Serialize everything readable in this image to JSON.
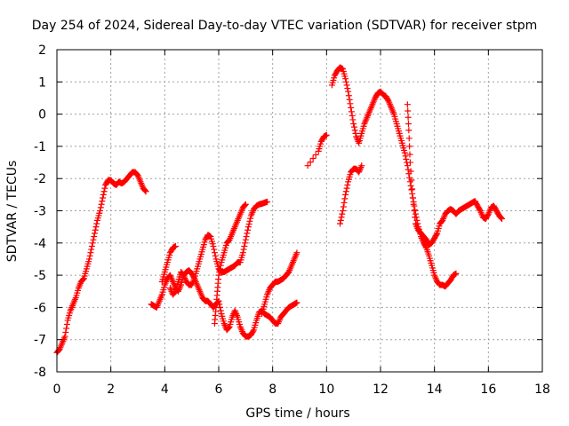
{
  "chart_data": {
    "type": "scatter",
    "title": "Day 254 of 2024, Sidereal Day-to-day VTEC variation (SDTVAR) for receiver stpm",
    "xlabel": "GPS time / hours",
    "ylabel": "SDTVAR / TECUs",
    "xlim": [
      0,
      18
    ],
    "ylim": [
      -8,
      2
    ],
    "xticks": [
      "0",
      "2",
      "4",
      "6",
      "8",
      "10",
      "12",
      "14",
      "16",
      "18"
    ],
    "yticks": [
      "2",
      "1",
      "0",
      "-1",
      "-2",
      "-3",
      "-4",
      "-5",
      "-6",
      "-7",
      "-8"
    ],
    "grid": true,
    "marker": "plus",
    "color": "#ff0000",
    "series": [
      {
        "name": "seg1",
        "x": [
          0.0,
          0.1,
          0.2,
          0.3,
          0.4,
          0.5,
          0.6,
          0.7,
          0.8,
          0.9,
          1.0,
          1.1,
          1.2,
          1.3,
          1.4,
          1.5,
          1.6,
          1.7,
          1.8,
          1.9,
          2.0,
          2.1,
          2.2,
          2.3,
          2.4,
          2.5,
          2.6,
          2.7,
          2.8,
          2.9,
          3.0,
          3.1,
          3.2,
          3.3
        ],
        "y": [
          -7.4,
          -7.3,
          -7.1,
          -6.9,
          -6.4,
          -6.1,
          -5.9,
          -5.7,
          -5.4,
          -5.2,
          -5.1,
          -4.8,
          -4.5,
          -4.1,
          -3.7,
          -3.3,
          -3.0,
          -2.6,
          -2.2,
          -2.05,
          -2.05,
          -2.15,
          -2.2,
          -2.1,
          -2.15,
          -2.1,
          -2.0,
          -1.9,
          -1.8,
          -1.8,
          -1.9,
          -2.1,
          -2.3,
          -2.4
        ]
      },
      {
        "name": "seg2",
        "x": [
          3.5,
          3.6,
          3.7,
          3.8,
          3.9,
          4.0,
          4.1,
          4.2,
          4.3,
          4.4,
          4.5,
          4.6,
          4.7,
          4.8,
          4.9,
          5.0,
          5.1,
          5.2,
          5.3,
          5.4,
          5.5,
          5.6,
          5.7,
          5.8,
          5.9,
          6.0,
          6.1,
          6.2,
          6.3,
          6.4,
          6.5,
          6.6,
          6.7,
          6.8,
          6.9,
          7.0,
          7.1,
          7.2,
          7.3,
          7.4,
          7.5,
          7.6,
          7.7,
          7.8,
          7.9,
          8.0,
          8.1,
          8.2,
          8.3,
          8.4,
          8.5,
          8.6,
          8.7,
          8.8,
          8.9
        ],
        "y": [
          -5.9,
          -5.95,
          -6.0,
          -5.8,
          -5.6,
          -5.3,
          -5.1,
          -5.0,
          -5.2,
          -5.4,
          -5.5,
          -5.3,
          -5.0,
          -4.9,
          -4.85,
          -4.95,
          -5.1,
          -5.3,
          -5.5,
          -5.7,
          -5.8,
          -5.8,
          -5.9,
          -6.0,
          -5.9,
          -5.8,
          -6.2,
          -6.5,
          -6.7,
          -6.6,
          -6.3,
          -6.1,
          -6.3,
          -6.6,
          -6.8,
          -6.9,
          -6.9,
          -6.85,
          -6.7,
          -6.4,
          -6.15,
          -6.1,
          -6.2,
          -6.25,
          -6.3,
          -6.4,
          -6.5,
          -6.5,
          -6.3,
          -6.2,
          -6.1,
          -6.0,
          -5.95,
          -5.9,
          -5.85
        ]
      },
      {
        "name": "seg3",
        "x": [
          4.2,
          4.3,
          4.4,
          4.5,
          4.6,
          4.7,
          4.8,
          4.9,
          5.0,
          5.1,
          5.2,
          5.3,
          5.4,
          5.5,
          5.6,
          5.7,
          5.8,
          5.9,
          6.0,
          6.1,
          6.2,
          6.3,
          6.4,
          6.5,
          6.6,
          6.7,
          6.8,
          6.9,
          7.0,
          7.1,
          7.2,
          7.3,
          7.4,
          7.5,
          7.6,
          7.7,
          7.8
        ],
        "y": [
          -5.4,
          -5.6,
          -5.5,
          -5.2,
          -4.9,
          -5.0,
          -5.2,
          -5.3,
          -5.3,
          -5.1,
          -4.8,
          -4.5,
          -4.2,
          -3.9,
          -3.75,
          -3.8,
          -4.1,
          -4.5,
          -4.8,
          -4.9,
          -4.9,
          -4.85,
          -4.8,
          -4.75,
          -4.7,
          -4.6,
          -4.6,
          -4.3,
          -3.9,
          -3.5,
          -3.15,
          -2.95,
          -2.85,
          -2.8,
          -2.78,
          -2.75,
          -2.72
        ]
      },
      {
        "name": "seg4",
        "x": [
          3.9,
          4.0,
          4.1,
          4.2,
          4.3,
          4.4
        ],
        "y": [
          -5.2,
          -4.9,
          -4.6,
          -4.3,
          -4.15,
          -4.1
        ]
      },
      {
        "name": "seg5",
        "x": [
          5.85,
          5.9,
          5.95,
          6.0,
          6.1,
          6.2,
          6.3,
          6.4,
          6.5,
          6.6,
          6.7,
          6.8,
          6.9,
          7.0
        ],
        "y": [
          -6.5,
          -6.0,
          -5.5,
          -5.0,
          -4.6,
          -4.3,
          -4.0,
          -3.9,
          -3.7,
          -3.5,
          -3.3,
          -3.1,
          -2.9,
          -2.8
        ]
      },
      {
        "name": "seg6",
        "x": [
          7.6,
          7.7,
          7.8,
          7.9,
          8.0,
          8.1,
          8.2,
          8.3,
          8.4,
          8.5,
          8.6,
          8.7,
          8.8,
          8.9
        ],
        "y": [
          -6.2,
          -5.9,
          -5.6,
          -5.4,
          -5.3,
          -5.2,
          -5.2,
          -5.15,
          -5.1,
          -5.0,
          -4.9,
          -4.7,
          -4.5,
          -4.3
        ]
      },
      {
        "name": "seg7",
        "x": [
          9.3,
          9.7,
          9.8,
          9.9,
          10.0
        ],
        "y": [
          -1.6,
          -1.15,
          -0.85,
          -0.7,
          -0.65
        ]
      },
      {
        "name": "seg8",
        "x": [
          10.2,
          10.3,
          10.4,
          10.5,
          10.6,
          10.7,
          10.8,
          10.9,
          11.0,
          11.1,
          11.2,
          11.3,
          11.4,
          11.5,
          11.6,
          11.7,
          11.8,
          11.9,
          12.0,
          12.1,
          12.2,
          12.3,
          12.4,
          12.5,
          12.6,
          12.7,
          12.8,
          12.9,
          13.0,
          13.1,
          13.2,
          13.3,
          13.4,
          13.5,
          13.6,
          13.7,
          13.8,
          13.9,
          14.0,
          14.1,
          14.2,
          14.3,
          14.4,
          14.5,
          14.6,
          14.7,
          14.8
        ],
        "y": [
          0.9,
          1.2,
          1.35,
          1.45,
          1.4,
          1.1,
          0.7,
          0.2,
          -0.3,
          -0.7,
          -0.9,
          -0.6,
          -0.3,
          -0.1,
          0.1,
          0.3,
          0.5,
          0.65,
          0.7,
          0.6,
          0.55,
          0.4,
          0.2,
          0.0,
          -0.3,
          -0.6,
          -0.9,
          -1.2,
          -1.6,
          -2.1,
          -2.6,
          -3.1,
          -3.5,
          -3.8,
          -4.0,
          -4.15,
          -4.4,
          -4.7,
          -5.0,
          -5.2,
          -5.3,
          -5.3,
          -5.35,
          -5.25,
          -5.15,
          -5.0,
          -4.95
        ]
      },
      {
        "name": "seg9",
        "x": [
          10.5,
          10.6,
          10.7,
          10.8,
          10.9,
          11.0,
          11.1,
          11.2,
          11.3
        ],
        "y": [
          -3.4,
          -3.0,
          -2.5,
          -2.1,
          -1.8,
          -1.7,
          -1.7,
          -1.8,
          -1.6
        ]
      },
      {
        "name": "seg10",
        "x": [
          13.0,
          13.05,
          13.1,
          13.2,
          13.3,
          13.4,
          13.5,
          13.6,
          13.7,
          13.8,
          13.9,
          14.0,
          14.1,
          14.2,
          14.3,
          14.4,
          14.5,
          14.6,
          14.7,
          14.8,
          14.9,
          15.0,
          15.1,
          15.2,
          15.3,
          15.4,
          15.5,
          15.6,
          15.7,
          15.8,
          15.9,
          16.0,
          16.1,
          16.2,
          16.3,
          16.4,
          16.5
        ],
        "y": [
          0.3,
          -0.5,
          -1.5,
          -2.6,
          -3.4,
          -3.6,
          -3.7,
          -3.8,
          -3.9,
          -4.05,
          -4.0,
          -3.85,
          -3.7,
          -3.4,
          -3.3,
          -3.1,
          -3.0,
          -2.95,
          -3.0,
          -3.1,
          -3.0,
          -2.95,
          -2.9,
          -2.85,
          -2.8,
          -2.75,
          -2.7,
          -2.85,
          -3.0,
          -3.2,
          -3.25,
          -3.1,
          -2.9,
          -2.85,
          -3.0,
          -3.15,
          -3.25
        ]
      }
    ]
  }
}
